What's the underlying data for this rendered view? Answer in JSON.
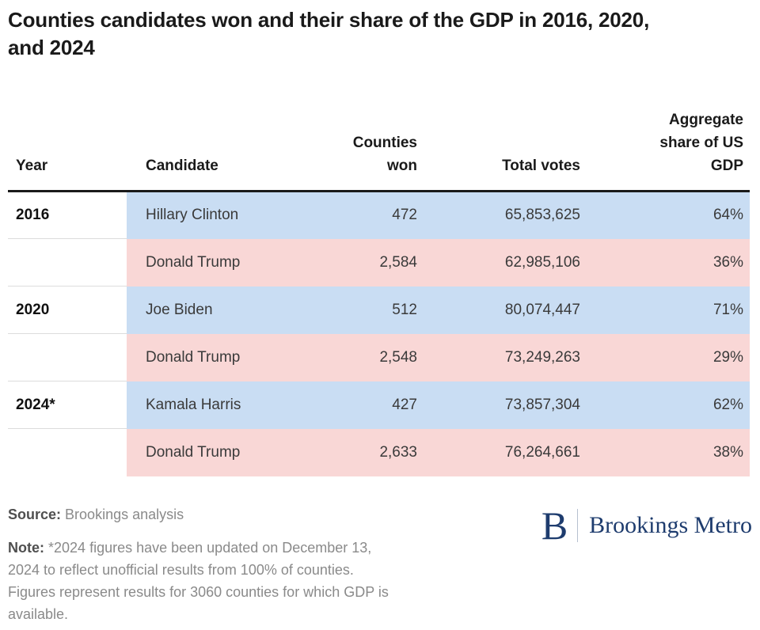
{
  "title": "Counties candidates won and their share of the GDP in 2016, 2020,\nand 2024",
  "header": {
    "year": "Year",
    "candidate": "Candidate",
    "counties": "Counties\nwon",
    "votes": "Total votes",
    "gdp": "Aggregate\nshare of US\nGDP"
  },
  "chart_data": {
    "type": "table",
    "title": "Counties candidates won and their share of the GDP in 2016, 2020, and 2024",
    "columns": [
      "Year",
      "Candidate",
      "Counties won",
      "Total votes",
      "Aggregate share of US GDP"
    ],
    "rows": [
      {
        "year": "2016",
        "candidate": "Hillary Clinton",
        "counties": "472",
        "votes": "65,853,625",
        "gdp": "64%",
        "party": "democrat"
      },
      {
        "year": "",
        "candidate": "Donald Trump",
        "counties": "2,584",
        "votes": "62,985,106",
        "gdp": "36%",
        "party": "republican"
      },
      {
        "year": "2020",
        "candidate": "Joe Biden",
        "counties": "512",
        "votes": "80,074,447",
        "gdp": "71%",
        "party": "democrat"
      },
      {
        "year": "",
        "candidate": "Donald Trump",
        "counties": "2,548",
        "votes": "73,249,263",
        "gdp": "29%",
        "party": "republican"
      },
      {
        "year": "2024*",
        "candidate": "Kamala Harris",
        "counties": "427",
        "votes": "73,857,304",
        "gdp": "62%",
        "party": "democrat"
      },
      {
        "year": "",
        "candidate": "Donald Trump",
        "counties": "2,633",
        "votes": "76,264,661",
        "gdp": "38%",
        "party": "republican"
      }
    ]
  },
  "footer": {
    "source_label": "Source:",
    "source_text": "Brookings analysis",
    "note_label": "Note:",
    "note_text": "*2024 figures have been updated on December 13,\n2024 to reflect unofficial results from 100% of counties.\nFigures represent results for 3060 counties for which GDP is\navailable."
  },
  "logo": {
    "mark": "B",
    "text": "Brookings Metro"
  },
  "colors": {
    "democrat_row": "#c9ddf3",
    "republican_row": "#f9d7d6",
    "brand_navy": "#1e3c6e",
    "header_rule": "#1a1a1a"
  }
}
